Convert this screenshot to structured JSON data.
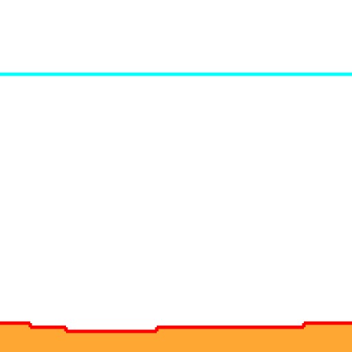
{
  "scene": {
    "background_color": "#ffffff",
    "guide_line": {
      "color": "#00ffff"
    },
    "terrain": {
      "fill_color": "#ffa733",
      "edge_color": "#ff0000",
      "segment_count": 6
    }
  }
}
